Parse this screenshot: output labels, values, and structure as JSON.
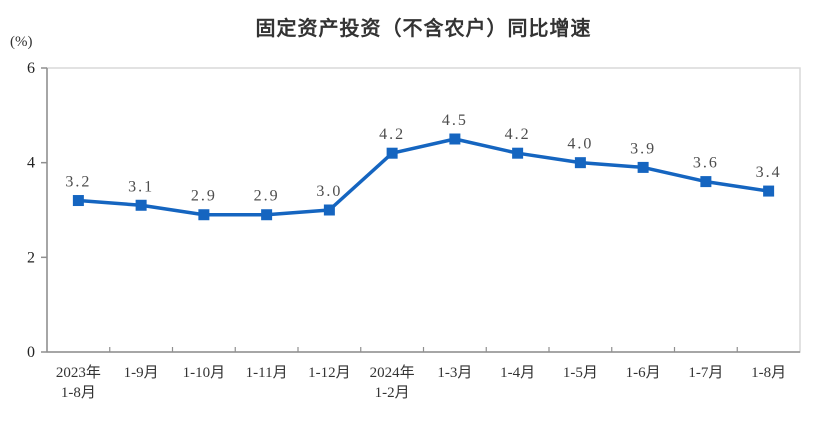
{
  "page": {
    "background": "#ffffff"
  },
  "header": {
    "title": "固定资产投资（不含农户）同比增速",
    "unit_label": "(%)"
  },
  "chart_data": {
    "type": "line",
    "title": "固定资产投资（不含农户）同比增速",
    "categories": [
      "2023年\n1-8月",
      "1-9月",
      "1-10月",
      "1-11月",
      "1-12月",
      "2024年\n1-2月",
      "1-3月",
      "1-4月",
      "1-5月",
      "1-6月",
      "1-7月",
      "1-8月"
    ],
    "values": [
      3.2,
      3.1,
      2.9,
      2.9,
      3.0,
      4.2,
      4.5,
      4.2,
      4.0,
      3.9,
      3.6,
      3.4
    ],
    "value_labels": [
      "3.2",
      "3.1",
      "2.9",
      "2.9",
      "3.0",
      "4.2",
      "4.5",
      "4.2",
      "4.0",
      "3.9",
      "3.6",
      "3.4"
    ],
    "xlabel": "",
    "ylabel": "(%)",
    "ylim": [
      0,
      6
    ],
    "yticks": [
      0,
      2,
      4,
      6
    ],
    "grid": false,
    "legend": "none",
    "marker": "square"
  },
  "colors": {
    "line": "#1565c0",
    "axis": "#8f8f8f",
    "border": "#d9d9d9",
    "title_text": "#333333",
    "value_label_text": "#4d4d4d",
    "tick_text": "#222222"
  }
}
